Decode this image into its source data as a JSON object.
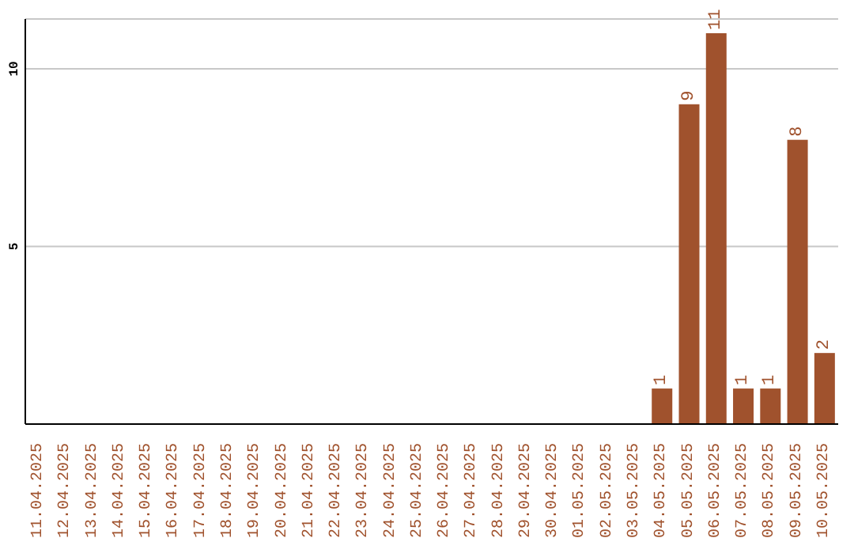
{
  "chart_data": {
    "type": "bar",
    "categories": [
      "11.04.2025",
      "12.04.2025",
      "13.04.2025",
      "14.04.2025",
      "15.04.2025",
      "16.04.2025",
      "17.04.2025",
      "18.04.2025",
      "19.04.2025",
      "20.04.2025",
      "21.04.2025",
      "22.04.2025",
      "23.04.2025",
      "24.04.2025",
      "25.04.2025",
      "26.04.2025",
      "27.04.2025",
      "28.04.2025",
      "29.04.2025",
      "30.04.2025",
      "01.05.2025",
      "02.05.2025",
      "03.05.2025",
      "04.05.2025",
      "05.05.2025",
      "06.05.2025",
      "07.05.2025",
      "08.05.2025",
      "09.05.2025",
      "10.05.2025"
    ],
    "values": [
      0,
      0,
      0,
      0,
      0,
      0,
      0,
      0,
      0,
      0,
      0,
      0,
      0,
      0,
      0,
      0,
      0,
      0,
      0,
      0,
      0,
      0,
      0,
      1,
      9,
      11,
      1,
      1,
      8,
      2
    ],
    "value_labels": [
      null,
      null,
      null,
      null,
      null,
      null,
      null,
      null,
      null,
      null,
      null,
      null,
      null,
      null,
      null,
      null,
      null,
      null,
      null,
      null,
      null,
      null,
      null,
      "1",
      "9",
      "11",
      "1",
      "1",
      "8",
      "2"
    ],
    "color": "#a0522d",
    "ylim": [
      0,
      11.4
    ],
    "yticks": [
      5,
      10
    ],
    "grid": "y"
  }
}
